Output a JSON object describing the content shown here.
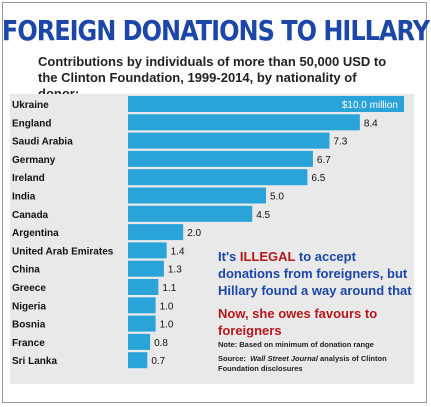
{
  "title": "FOREIGN DONATIONS TO HILLARY",
  "subtitle": "Contributions by individuals of more than 50,000 USD to the Clinton Foundation, 1999-2014, by nationality of donor:",
  "colors": {
    "bar": "#29a3d8",
    "title": "#1c47a8",
    "highlight": "#b5181c",
    "panel": "#e9e9e9"
  },
  "annotation": {
    "line1_pre": "It's ",
    "line1_highlight": "ILLEGAL",
    "line1_post": " to accept donations from foreigners, but Hillary found a way around that",
    "line2": "Now, she owes favours to foreigners"
  },
  "footnotes": {
    "note_label": "Note:",
    "note": "Based on minimum of donation range",
    "source_label": "Source:",
    "source_publication": "Wall Street Journal",
    "source_rest": "analysis of Clinton Foundation disclosures"
  },
  "chart_data": {
    "type": "bar",
    "orientation": "horizontal",
    "title": "FOREIGN DONATIONS TO HILLARY",
    "subtitle": "Contributions by individuals of more than 50,000 USD to the Clinton Foundation, 1999-2014, by nationality of donor:",
    "xlabel": "",
    "ylabel": "",
    "unit": "million",
    "categories": [
      "Ukraine",
      "England",
      "Saudi Arabia",
      "Germany",
      "Ireland",
      "India",
      "Canada",
      "Argentina",
      "United Arab Emirates",
      "China",
      "Greece",
      "Nigeria",
      "Bosnia",
      "France",
      "Sri Lanka"
    ],
    "values": [
      10.0,
      8.4,
      7.3,
      6.7,
      6.5,
      5.0,
      4.5,
      2.0,
      1.4,
      1.3,
      1.1,
      1.0,
      1.0,
      0.8,
      0.7
    ],
    "value_labels": [
      "$10.0 million",
      "8.4",
      "7.3",
      "6.7",
      "6.5",
      "5.0",
      "4.5",
      "2.0",
      "1.4",
      "1.3",
      "1.1",
      "1.0",
      "1.0",
      "0.8",
      "0.7"
    ],
    "xlim": [
      0,
      10
    ],
    "grid": false,
    "legend": "none"
  }
}
